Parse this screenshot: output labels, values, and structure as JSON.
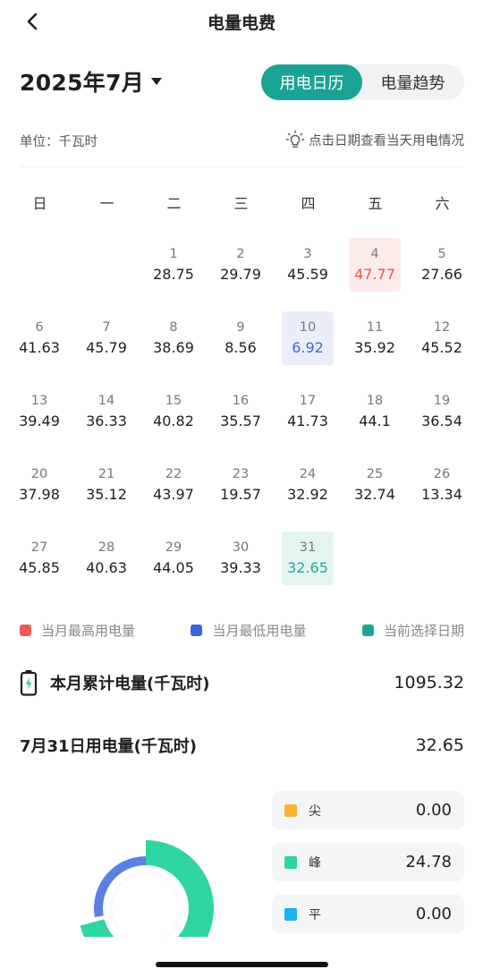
{
  "header": {
    "title": "电量电费"
  },
  "month_selector": {
    "label": "2025年7月"
  },
  "tabs": [
    {
      "label": "用电日历",
      "active": true
    },
    {
      "label": "电量趋势",
      "active": false
    }
  ],
  "unit_label": "单位：千瓦时",
  "hint": "点击日期查看当天用电情况",
  "weekdays": [
    "日",
    "一",
    "二",
    "三",
    "四",
    "五",
    "六"
  ],
  "calendar": {
    "leading_blanks": 2,
    "days": [
      {
        "day": "1",
        "value": "28.75"
      },
      {
        "day": "2",
        "value": "29.79"
      },
      {
        "day": "3",
        "value": "45.59"
      },
      {
        "day": "4",
        "value": "47.77",
        "state": "high"
      },
      {
        "day": "5",
        "value": "27.66"
      },
      {
        "day": "6",
        "value": "41.63"
      },
      {
        "day": "7",
        "value": "45.79"
      },
      {
        "day": "8",
        "value": "38.69"
      },
      {
        "day": "9",
        "value": "8.56"
      },
      {
        "day": "10",
        "value": "6.92",
        "state": "low"
      },
      {
        "day": "11",
        "value": "35.92"
      },
      {
        "day": "12",
        "value": "45.52"
      },
      {
        "day": "13",
        "value": "39.49"
      },
      {
        "day": "14",
        "value": "36.33"
      },
      {
        "day": "15",
        "value": "40.82"
      },
      {
        "day": "16",
        "value": "35.57"
      },
      {
        "day": "17",
        "value": "41.73"
      },
      {
        "day": "18",
        "value": "44.1"
      },
      {
        "day": "19",
        "value": "36.54"
      },
      {
        "day": "20",
        "value": "37.98"
      },
      {
        "day": "21",
        "value": "35.12"
      },
      {
        "day": "22",
        "value": "43.97"
      },
      {
        "day": "23",
        "value": "19.57"
      },
      {
        "day": "24",
        "value": "32.92"
      },
      {
        "day": "25",
        "value": "32.74"
      },
      {
        "day": "26",
        "value": "13.34"
      },
      {
        "day": "27",
        "value": "45.85"
      },
      {
        "day": "28",
        "value": "40.63"
      },
      {
        "day": "29",
        "value": "44.05"
      },
      {
        "day": "30",
        "value": "39.33"
      },
      {
        "day": "31",
        "value": "32.65",
        "state": "selected"
      }
    ]
  },
  "legend": [
    {
      "label": "当月最高用电量",
      "color": "#ec5a57"
    },
    {
      "label": "当月最低用电量",
      "color": "#3f63d9"
    },
    {
      "label": "当前选择日期",
      "color": "#1ea596"
    }
  ],
  "month_total": {
    "label": "本月累计电量(千瓦时)",
    "value": "1095.32",
    "icon": "battery-icon"
  },
  "selected_day": {
    "label": "7月31日用电量(千瓦时)",
    "value": "32.65"
  },
  "tou_breakdown": [
    {
      "name": "尖",
      "value": "0.00",
      "color": "#f7b538"
    },
    {
      "name": "峰",
      "value": "24.78",
      "color": "#2fd4a3"
    },
    {
      "name": "平",
      "value": "0.00",
      "color": "#1ab2f0"
    }
  ]
}
